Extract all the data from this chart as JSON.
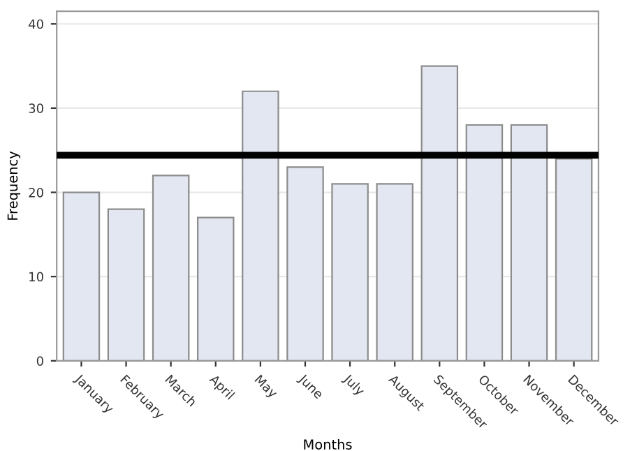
{
  "chart_data": {
    "type": "bar",
    "xlabel": "Months",
    "ylabel": "Frequency",
    "categories": [
      "January",
      "February",
      "March",
      "April",
      "May",
      "June",
      "July",
      "August",
      "September",
      "October",
      "November",
      "December"
    ],
    "values": [
      20,
      18,
      22,
      17,
      32,
      23,
      21,
      21,
      35,
      28,
      28,
      24
    ],
    "color": "#e3e7f2",
    "ylim": [
      0,
      41.5
    ],
    "yticks": [
      0,
      10,
      20,
      30,
      40
    ],
    "grid": "y",
    "ref_lines": [
      {
        "axis": "y",
        "value": 24.4,
        "color": "#000000"
      }
    ]
  }
}
